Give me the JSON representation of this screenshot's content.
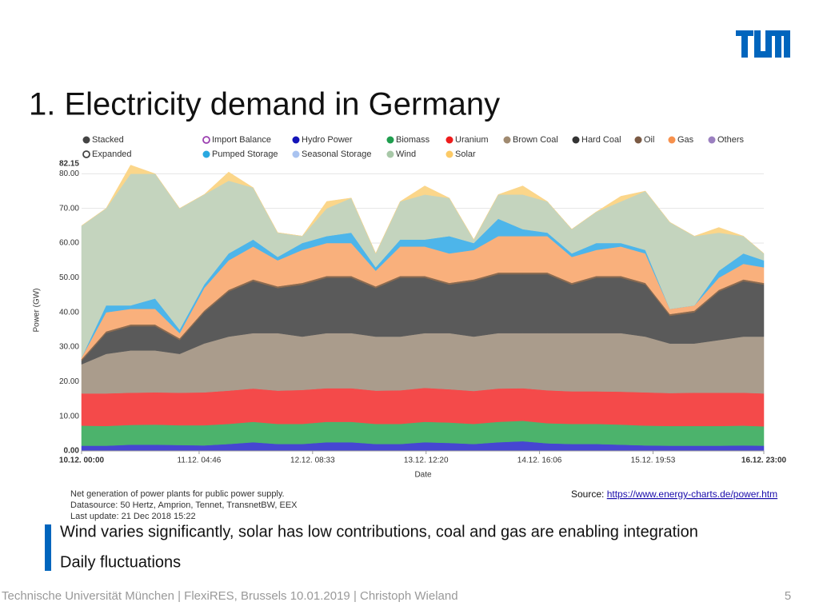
{
  "header": {
    "title": "1. Electricity demand in Germany"
  },
  "chart_data": {
    "type": "stacked_area",
    "y_label": "Power (GW)",
    "x_label": "Date",
    "legend": [
      {
        "name": "Stacked",
        "color": "#444444",
        "marker": "dot"
      },
      {
        "name": "Import Balance",
        "color": "#9b3fb0",
        "marker": "ring"
      },
      {
        "name": "Hydro Power",
        "color": "#1414b8",
        "marker": "dot"
      },
      {
        "name": "Biomass",
        "color": "#1f9e4e",
        "marker": "dot"
      },
      {
        "name": "Uranium",
        "color": "#ee1c1c",
        "marker": "dot"
      },
      {
        "name": "Brown Coal",
        "color": "#a08a70",
        "marker": "dot"
      },
      {
        "name": "Hard Coal",
        "color": "#333333",
        "marker": "dot"
      },
      {
        "name": "Oil",
        "color": "#7b5a44",
        "marker": "dot"
      },
      {
        "name": "Gas",
        "color": "#f7914d",
        "marker": "dot"
      },
      {
        "name": "Others",
        "color": "#9b80c0",
        "marker": "dot"
      },
      {
        "name": "Expanded",
        "color": "#444444",
        "marker": "ring"
      },
      {
        "name": "Pumped Storage",
        "color": "#29a8e0",
        "marker": "dot"
      },
      {
        "name": "Seasonal Storage",
        "color": "#a9c3f0",
        "marker": "dot"
      },
      {
        "name": "Wind",
        "color": "#a8c8a8",
        "marker": "dot"
      },
      {
        "name": "Solar",
        "color": "#fcca66",
        "marker": "dot"
      }
    ],
    "x": [
      0,
      6,
      12,
      18,
      24,
      30,
      36,
      42,
      48,
      54,
      60,
      66,
      72,
      78,
      84,
      90,
      96,
      102,
      108,
      114,
      120,
      126,
      132,
      138,
      144,
      150,
      156,
      162,
      167
    ],
    "xlim": [
      0,
      167
    ],
    "xticks": [
      {
        "value": 0,
        "label": "10.12. 00:00"
      },
      {
        "value": 28.77,
        "label": "11.12. 04:46"
      },
      {
        "value": 56.55,
        "label": "12.12. 08:33"
      },
      {
        "value": 84.33,
        "label": "13.12. 12:20"
      },
      {
        "value": 112.1,
        "label": "14.12. 16:06"
      },
      {
        "value": 139.88,
        "label": "15.12. 19:53"
      },
      {
        "value": 167,
        "label": "16.12. 23:00"
      }
    ],
    "ylim": [
      0,
      82.15
    ],
    "yticks": [
      {
        "value": 0,
        "label": "0.00"
      },
      {
        "value": 10,
        "label": "10.00"
      },
      {
        "value": 20,
        "label": "20.00"
      },
      {
        "value": 30,
        "label": "30.00"
      },
      {
        "value": 40,
        "label": "40.00"
      },
      {
        "value": 50,
        "label": "50.00"
      },
      {
        "value": 60,
        "label": "60.00"
      },
      {
        "value": 70,
        "label": "70.00"
      },
      {
        "value": 80,
        "label": "80.00"
      },
      {
        "value": 82.15,
        "label": "82.15"
      }
    ],
    "grid": true,
    "series": [
      {
        "name": "Hydro Power",
        "color": "#4646d2",
        "values": [
          1.5,
          1.5,
          1.8,
          1.8,
          1.7,
          1.6,
          2,
          2.5,
          2,
          2,
          2.5,
          2.5,
          2,
          2,
          2.5,
          2.3,
          2,
          2.5,
          2.8,
          2.2,
          2,
          2,
          1.8,
          1.6,
          1.5,
          1.5,
          1.5,
          1.6,
          1.5
        ]
      },
      {
        "name": "Biomass",
        "color": "#4cb36c",
        "values": [
          5.8,
          5.7,
          5.7,
          5.8,
          5.7,
          5.8,
          5.8,
          5.9,
          5.8,
          5.8,
          5.9,
          5.9,
          5.8,
          5.8,
          5.9,
          5.9,
          5.8,
          5.9,
          5.9,
          5.8,
          5.8,
          5.8,
          5.8,
          5.7,
          5.7,
          5.7,
          5.7,
          5.7,
          5.6
        ]
      },
      {
        "name": "Uranium",
        "color": "#f44a4a",
        "values": [
          9.3,
          9.4,
          9.3,
          9.3,
          9.4,
          9.5,
          9.6,
          9.6,
          9.6,
          9.8,
          9.7,
          9.7,
          9.6,
          9.7,
          9.8,
          9.6,
          9.5,
          9.6,
          9.4,
          9.5,
          9.4,
          9.4,
          9.5,
          9.6,
          9.5,
          9.6,
          9.6,
          9.5,
          9.5
        ]
      },
      {
        "name": "Brown Coal",
        "color": "#aa9c8c",
        "values": [
          8.4,
          11.4,
          12.2,
          12.1,
          11.2,
          14.1,
          15.6,
          16,
          16.6,
          15.4,
          15.9,
          15.9,
          15.6,
          15.5,
          15.8,
          16.2,
          15.7,
          16,
          15.9,
          16.5,
          16.8,
          16.8,
          16.9,
          16.1,
          14.3,
          14.2,
          15.2,
          16.2,
          16.4
        ]
      },
      {
        "name": "Hard Coal",
        "color": "#5a5a5a",
        "values": [
          1,
          6,
          7,
          7,
          4,
          9,
          13,
          15,
          13,
          15,
          16,
          16,
          14,
          17,
          16,
          14,
          16,
          17,
          17,
          17,
          14,
          16,
          16,
          15,
          8,
          9,
          14,
          16,
          15
        ]
      },
      {
        "name": "Oil",
        "color": "#8a6a50",
        "values": [
          0.5,
          0.5,
          0.5,
          0.5,
          0.5,
          0.5,
          0.5,
          0.5,
          0.5,
          0.5,
          0.5,
          0.5,
          0.5,
          0.5,
          0.5,
          0.5,
          0.5,
          0.5,
          0.5,
          0.5,
          0.5,
          0.5,
          0.5,
          0.5,
          0.5,
          0.5,
          0.5,
          0.5,
          0.5
        ]
      },
      {
        "name": "Gas",
        "color": "#f9b07c",
        "values": [
          0.5,
          5.5,
          4.5,
          4.5,
          1.5,
          6.5,
          8.5,
          9.5,
          7.5,
          9.5,
          9.5,
          9.5,
          4.5,
          8.5,
          8.5,
          8.5,
          8.5,
          10.5,
          10.5,
          10.5,
          7.5,
          7.5,
          8.5,
          8.5,
          1.5,
          1.5,
          3.5,
          4.5,
          4.5
        ]
      },
      {
        "name": "Pumped Storage",
        "color": "#4db5ea",
        "values": [
          0,
          2,
          1,
          3,
          1,
          1,
          2,
          2,
          1,
          2,
          2,
          3,
          1,
          2,
          2,
          5,
          2,
          5,
          2,
          1,
          1,
          2,
          1,
          1,
          0,
          0,
          2,
          3,
          2
        ]
      },
      {
        "name": "Wind",
        "color": "#c4d4be",
        "values": [
          38,
          28,
          38,
          36,
          35,
          26,
          21,
          15,
          7,
          2,
          8,
          10,
          4,
          11,
          13,
          11,
          1,
          7,
          10,
          9,
          7,
          9,
          12,
          17,
          25,
          20,
          11,
          5,
          2
        ]
      },
      {
        "name": "Solar",
        "color": "#fbd68a",
        "values": [
          0,
          0,
          2.5,
          0,
          0,
          0,
          2.5,
          0,
          0,
          0,
          2,
          0,
          0,
          0,
          2.5,
          0,
          0,
          0,
          2.5,
          0,
          0,
          0,
          1.5,
          0,
          0,
          0,
          1.5,
          0,
          0
        ]
      }
    ],
    "notes": [
      "Net generation of power plants for public power supply.",
      "Datasource: 50 Hertz, Amprion, Tennet, TransnetBW, EEX",
      "Last update: 21 Dec 2018 15:22"
    ]
  },
  "source": {
    "label": "Source:",
    "link": "https://www.energy-charts.de/power.htm"
  },
  "bullets": [
    "Wind varies significantly, solar has low contributions, coal and gas are enabling integration",
    "Daily fluctuations"
  ],
  "footer": {
    "text": "Technische Universität München | FlexiRES, Brussels 10.01.2019 | Christoph Wieland",
    "page": "5"
  }
}
